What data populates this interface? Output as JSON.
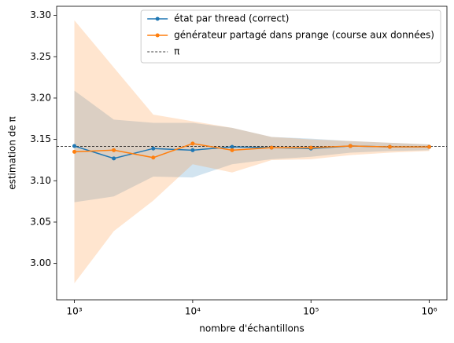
{
  "chart_data": {
    "type": "line",
    "xlabel": "nombre d'échantillons",
    "ylabel": "estimation de π",
    "x": [
      1000,
      2154,
      4642,
      10000,
      21544,
      46416,
      100000,
      215443,
      464159,
      1000000
    ],
    "xscale": "log",
    "xlim": [
      708,
      1410000
    ],
    "xticks": [
      {
        "value": 1000,
        "label": "10³"
      },
      {
        "value": 10000,
        "label": "10⁴"
      },
      {
        "value": 100000,
        "label": "10⁵"
      },
      {
        "value": 1000000,
        "label": "10⁶"
      }
    ],
    "ylim": [
      2.956,
      3.311
    ],
    "yticks": [
      {
        "value": 3,
        "label": "3.00"
      },
      3.05,
      {
        "value": 3.1,
        "label": "3.10"
      },
      3.15,
      {
        "value": 3.2,
        "label": "3.20"
      },
      3.25,
      {
        "value": 3.3,
        "label": "3.30"
      }
    ],
    "legend_loc": "upper right",
    "series": [
      {
        "name": "état par thread (correct)",
        "color": "#1f77b4",
        "values": [
          3.142,
          3.127,
          3.139,
          3.137,
          3.141,
          3.14,
          3.139,
          3.142,
          3.141,
          3.141
        ],
        "lower": [
          3.074,
          3.081,
          3.105,
          3.104,
          3.12,
          3.126,
          3.129,
          3.134,
          3.136,
          3.137
        ],
        "upper": [
          3.209,
          3.174,
          3.17,
          3.17,
          3.164,
          3.153,
          3.151,
          3.148,
          3.146,
          3.144
        ]
      },
      {
        "name": "générateur partagé dans prange (course aux données)",
        "color": "#ff7f0e",
        "values": [
          3.135,
          3.137,
          3.128,
          3.145,
          3.137,
          3.14,
          3.14,
          3.142,
          3.141,
          3.141
        ],
        "lower": [
          2.976,
          3.039,
          3.076,
          3.12,
          3.11,
          3.125,
          3.126,
          3.131,
          3.134,
          3.136
        ],
        "upper": [
          3.294,
          3.237,
          3.18,
          3.172,
          3.164,
          3.153,
          3.15,
          3.148,
          3.146,
          3.144
        ]
      }
    ],
    "hline": {
      "name": "π",
      "value": 3.141592653589793,
      "color": "#000000"
    }
  }
}
